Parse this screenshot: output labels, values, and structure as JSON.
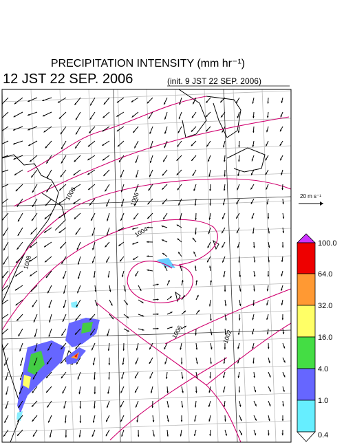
{
  "header": {
    "title": "PRECIPITATION INTENSITY (mm hr⁻¹)",
    "valid_time": "12 JST 22 SEP. 2006",
    "init_time": "(init. 9 JST 22 SEP. 2006)"
  },
  "wind_scale": {
    "label": "20 m s⁻¹"
  },
  "colorbar": {
    "labels": [
      "100.0",
      "64.0",
      "32.0",
      "16.0",
      "4.0",
      "1.0",
      "0.4"
    ]
  },
  "isobars": {
    "labels": [
      "1008",
      "1006",
      "1004",
      "1008",
      "1006",
      "1002"
    ]
  }
}
